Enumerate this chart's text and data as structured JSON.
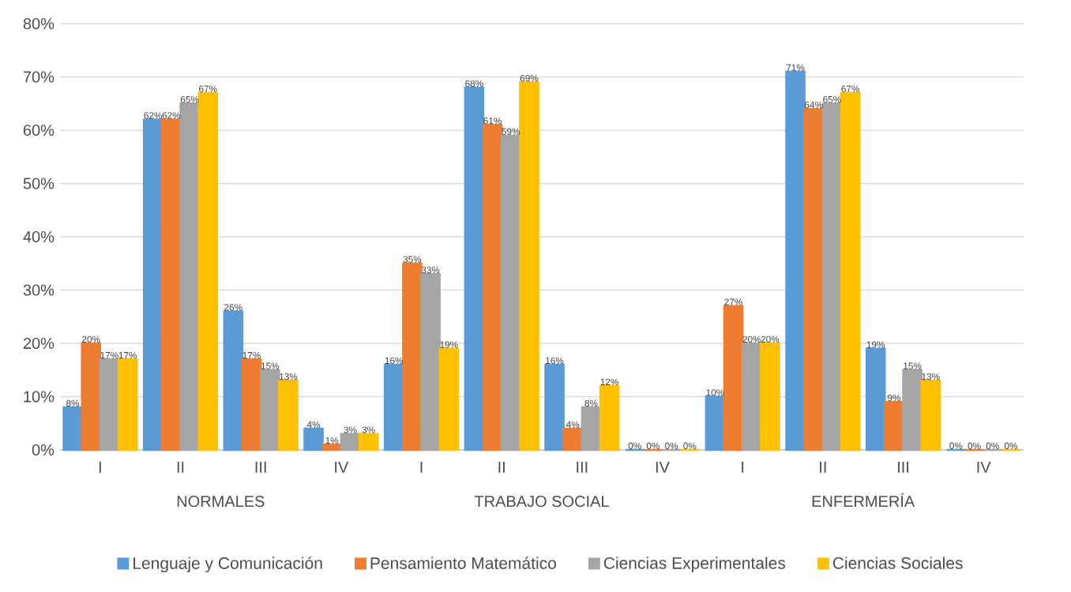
{
  "chart_data": {
    "type": "bar",
    "categories": [
      "I",
      "II",
      "III",
      "IV",
      "I",
      "II",
      "III",
      "IV",
      "I",
      "II",
      "III",
      "IV"
    ],
    "series": [
      {
        "name": "Lenguaje y Comunicación",
        "color": "#5b9bd5",
        "values": [
          8,
          62,
          26,
          4,
          16,
          68,
          16,
          0,
          10,
          71,
          19,
          0
        ],
        "value_labels": [
          "8%",
          "62%",
          "26%",
          "4%",
          "16%",
          "68%",
          "16%",
          "0%",
          "10%",
          "71%",
          "19%",
          "0%"
        ]
      },
      {
        "name": "Pensamiento Matemático",
        "color": "#ed7d31",
        "values": [
          20,
          62,
          17,
          1,
          35,
          61,
          4,
          0,
          27,
          64,
          9,
          0
        ],
        "value_labels": [
          "20%",
          "62%",
          "17%",
          "1%",
          "35%",
          "61%",
          "4%",
          "0%",
          "27%",
          "64%",
          "9%",
          "0%"
        ]
      },
      {
        "name": "Ciencias Experimentales",
        "color": "#a5a5a5",
        "values": [
          17,
          65,
          15,
          3,
          33,
          59,
          8,
          0,
          20,
          65,
          15,
          0
        ],
        "value_labels": [
          "17%",
          "65%",
          "15%",
          "3%",
          "33%",
          "59%",
          "8%",
          "0%",
          "20%",
          "65%",
          "15%",
          "0%"
        ]
      },
      {
        "name": "Ciencias Sociales",
        "color": "#ffc000",
        "values": [
          17,
          67,
          13,
          3,
          19,
          69,
          12,
          0,
          20,
          67,
          13,
          0
        ],
        "value_labels": [
          "17%",
          "67%",
          "13%",
          "3%",
          "19%",
          "69%",
          "12%",
          "0%",
          "20%",
          "67%",
          "13%",
          "0%"
        ]
      }
    ],
    "annotations": [
      "NORMALES",
      "TRABAJO SOCIAL",
      "ENFERMERÍA"
    ],
    "ylim": [
      0,
      80
    ],
    "yticks": [
      {
        "value": 0,
        "label": "0%"
      },
      {
        "value": 10,
        "label": "10%"
      },
      {
        "value": 20,
        "label": "20%"
      },
      {
        "value": 30,
        "label": "30%"
      },
      {
        "value": 40,
        "label": "40%"
      },
      {
        "value": 50,
        "label": "50%"
      },
      {
        "value": 60,
        "label": "60%"
      },
      {
        "value": 70,
        "label": "70%"
      },
      {
        "value": 80,
        "label": "80%"
      }
    ],
    "grid": "y",
    "legend": "bottom"
  }
}
